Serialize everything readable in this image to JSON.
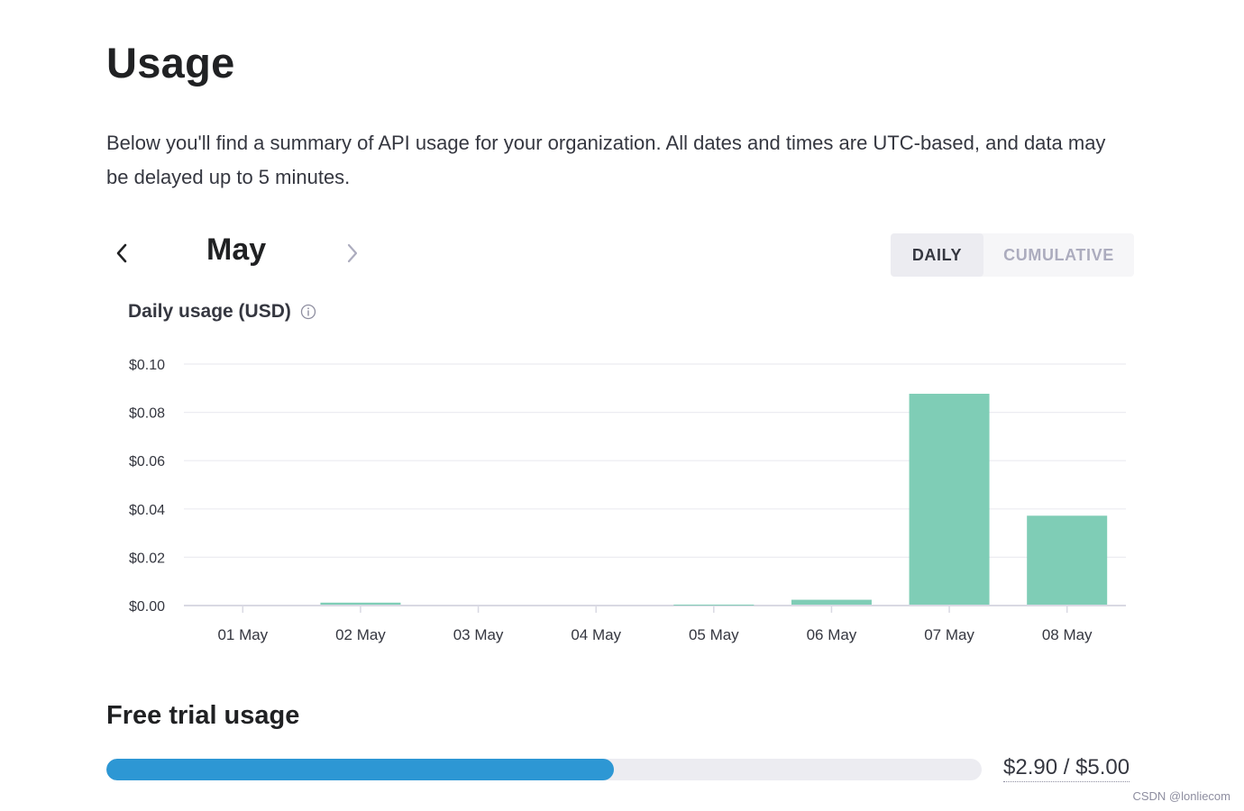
{
  "header": {
    "title": "Usage",
    "description": "Below you'll find a summary of API usage for your organization. All dates and times are UTC-based, and data may be delayed up to 5 minutes."
  },
  "period": {
    "month": "May",
    "prev_icon": "chevron-left-icon",
    "next_icon": "chevron-right-icon"
  },
  "view_toggle": {
    "options": [
      {
        "label": "DAILY",
        "selected": true
      },
      {
        "label": "CUMULATIVE",
        "selected": false
      }
    ]
  },
  "chart_title": "Daily usage (USD)",
  "chart_data": {
    "type": "bar",
    "title": "Daily usage (USD)",
    "categories": [
      "01 May",
      "02 May",
      "03 May",
      "04 May",
      "05 May",
      "06 May",
      "07 May",
      "08 May"
    ],
    "values": [
      0.0,
      0.0012,
      0.0,
      0.0,
      0.0004,
      0.0024,
      0.0877,
      0.0372
    ],
    "ylim": [
      0,
      0.1
    ],
    "yticks": [
      0.0,
      0.02,
      0.04,
      0.06,
      0.08,
      0.1
    ],
    "ytick_labels": [
      "$0.00",
      "$0.02",
      "$0.04",
      "$0.06",
      "$0.08",
      "$0.10"
    ],
    "grid": true,
    "bar_color": "#7fcdb6"
  },
  "free_trial": {
    "title": "Free trial usage",
    "used": 2.9,
    "limit": 5.0,
    "amount_text": "$2.90 / $5.00",
    "bar_color": "#2d97d4"
  },
  "watermark": "CSDN @lonliecom"
}
